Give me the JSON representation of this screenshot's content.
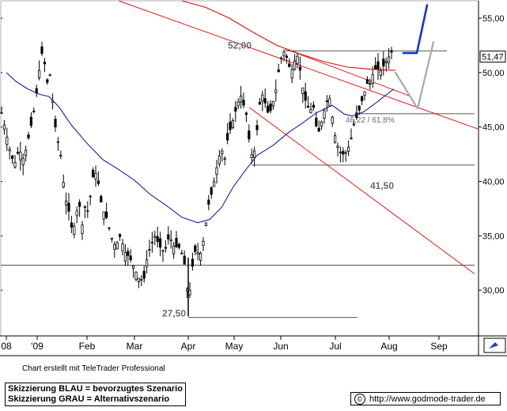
{
  "chart_data": {
    "type": "candlestick",
    "y_ticks": [
      "55,00",
      "50,00",
      "45,00",
      "40,00",
      "35,00",
      "30,00"
    ],
    "y_tick_values": [
      55,
      50,
      45,
      40,
      35,
      30
    ],
    "x_ticks": [
      "08",
      "'09",
      "Feb",
      "Mar",
      "Apr",
      "May",
      "Jun",
      "Jul",
      "Aug",
      "Sep"
    ],
    "ylim": [
      25.8,
      56.6
    ],
    "last_price": "51,47",
    "last_value": 51.47,
    "annotations": [
      {
        "text": "52,00",
        "value": 52.0
      },
      {
        "text": "41,50",
        "value": 41.5
      },
      {
        "text": "27,50",
        "value": 27.5
      },
      {
        "text": "46,22 / 61,8%",
        "value": 46.22
      }
    ],
    "horizontal_levels": [
      52.0,
      46.22,
      41.5,
      32.3,
      27.5
    ],
    "price_path_description": "daily candles from late 2008 to early August 2009",
    "price_path": [
      [
        0,
        47
      ],
      [
        6,
        45
      ],
      [
        12,
        43
      ],
      [
        18,
        41.5
      ],
      [
        24,
        43
      ],
      [
        30,
        42
      ],
      [
        36,
        44
      ],
      [
        42,
        46
      ],
      [
        48,
        49
      ],
      [
        52,
        52
      ],
      [
        56,
        51
      ],
      [
        60,
        49
      ],
      [
        64,
        50
      ],
      [
        68,
        46
      ],
      [
        72,
        44
      ],
      [
        76,
        43
      ],
      [
        80,
        40
      ],
      [
        84,
        38
      ],
      [
        88,
        37
      ],
      [
        92,
        35
      ],
      [
        96,
        37
      ],
      [
        100,
        38
      ],
      [
        104,
        36
      ],
      [
        108,
        38
      ],
      [
        112,
        37
      ],
      [
        116,
        40
      ],
      [
        120,
        41
      ],
      [
        124,
        40
      ],
      [
        128,
        38
      ],
      [
        132,
        37
      ],
      [
        136,
        36.5
      ],
      [
        140,
        35
      ],
      [
        146,
        34
      ],
      [
        152,
        35
      ],
      [
        158,
        33.5
      ],
      [
        164,
        33
      ],
      [
        170,
        32
      ],
      [
        176,
        31
      ],
      [
        182,
        31
      ],
      [
        186,
        33
      ],
      [
        190,
        34
      ],
      [
        196,
        35
      ],
      [
        202,
        34
      ],
      [
        208,
        33.5
      ],
      [
        214,
        35
      ],
      [
        220,
        34
      ],
      [
        226,
        34
      ],
      [
        232,
        33
      ],
      [
        236,
        31
      ],
      [
        238,
        28
      ],
      [
        241,
        31
      ],
      [
        244,
        32.5
      ],
      [
        248,
        34
      ],
      [
        252,
        33
      ],
      [
        256,
        34
      ],
      [
        260,
        36
      ],
      [
        264,
        38
      ],
      [
        268,
        39
      ],
      [
        272,
        40.5
      ],
      [
        276,
        42
      ],
      [
        280,
        43
      ],
      [
        284,
        42
      ],
      [
        288,
        44
      ],
      [
        292,
        45
      ],
      [
        296,
        46
      ],
      [
        300,
        47
      ],
      [
        304,
        48
      ],
      [
        308,
        47
      ],
      [
        312,
        46
      ],
      [
        316,
        43
      ],
      [
        320,
        42
      ],
      [
        324,
        44
      ],
      [
        328,
        47
      ],
      [
        332,
        48
      ],
      [
        336,
        47
      ],
      [
        340,
        46
      ],
      [
        344,
        47
      ],
      [
        348,
        48
      ],
      [
        352,
        50
      ],
      [
        356,
        51.5
      ],
      [
        360,
        52
      ],
      [
        364,
        51
      ],
      [
        368,
        50
      ],
      [
        372,
        51
      ],
      [
        376,
        51.5
      ],
      [
        380,
        50
      ],
      [
        384,
        48
      ],
      [
        388,
        47
      ],
      [
        392,
        46.5
      ],
      [
        396,
        47
      ],
      [
        400,
        45
      ],
      [
        404,
        44.5
      ],
      [
        408,
        46
      ],
      [
        412,
        47
      ],
      [
        416,
        48
      ],
      [
        420,
        46
      ],
      [
        424,
        44
      ],
      [
        428,
        43
      ],
      [
        432,
        42.5
      ],
      [
        436,
        42.5
      ],
      [
        440,
        43
      ],
      [
        444,
        44
      ],
      [
        448,
        45.5
      ],
      [
        452,
        46
      ],
      [
        456,
        47
      ],
      [
        460,
        48
      ],
      [
        464,
        49
      ],
      [
        468,
        49
      ],
      [
        472,
        50
      ],
      [
        476,
        50.5
      ],
      [
        480,
        50
      ],
      [
        484,
        50.5
      ],
      [
        488,
        51
      ],
      [
        492,
        51.5
      ],
      [
        496,
        52
      ]
    ],
    "moving_average_blue": [
      [
        8,
        50
      ],
      [
        20,
        49.2
      ],
      [
        35,
        48.5
      ],
      [
        50,
        48
      ],
      [
        62,
        47.8
      ],
      [
        75,
        46.8
      ],
      [
        90,
        45.2
      ],
      [
        110,
        43.5
      ],
      [
        130,
        42
      ],
      [
        150,
        41.1
      ],
      [
        170,
        40.1
      ],
      [
        190,
        38.8
      ],
      [
        210,
        37.8
      ],
      [
        230,
        36.7
      ],
      [
        250,
        36.2
      ],
      [
        265,
        36.5
      ],
      [
        280,
        37.6
      ],
      [
        295,
        39.5
      ],
      [
        310,
        41
      ],
      [
        325,
        42.4
      ],
      [
        345,
        43.3
      ],
      [
        365,
        44.5
      ],
      [
        385,
        45.5
      ],
      [
        400,
        46.3
      ],
      [
        420,
        47
      ],
      [
        435,
        46.2
      ],
      [
        445,
        46
      ],
      [
        460,
        46.4
      ],
      [
        475,
        47.2
      ],
      [
        498,
        48.5
      ]
    ],
    "moving_average_red": [
      [
        230,
        56.6
      ],
      [
        260,
        56
      ],
      [
        290,
        55
      ],
      [
        320,
        53.7
      ],
      [
        350,
        52.5
      ],
      [
        380,
        51.7
      ],
      [
        410,
        51
      ],
      [
        440,
        50.5
      ],
      [
        470,
        50.3
      ],
      [
        500,
        50.2
      ]
    ],
    "trendlines_red": [
      [
        [
          150,
          56.6
        ],
        [
          605,
          44.8
        ]
      ],
      [
        [
          315,
          46.8
        ],
        [
          600,
          31.5
        ]
      ],
      [
        [
          360,
          52.2
        ],
        [
          520,
          47.8
        ]
      ]
    ],
    "scenario_blue": [
      [
        510,
        51.8
      ],
      [
        527,
        51.8
      ],
      [
        540,
        56.2
      ]
    ],
    "scenario_grey": [
      [
        500,
        50
      ],
      [
        528,
        46.7
      ],
      [
        548,
        52.8
      ]
    ]
  },
  "credit": "Chart erstellt mit TeleTrader Professional",
  "legend": {
    "line1": "Skizzierung BLAU = bevorzugtes Szenario",
    "line2": "Skizzierung GRAU = Alternativszenario"
  },
  "website": "http://www.godmode-trader.de",
  "copyright_symbol": "©",
  "icons": {
    "corner": "trader-logo-icon"
  }
}
